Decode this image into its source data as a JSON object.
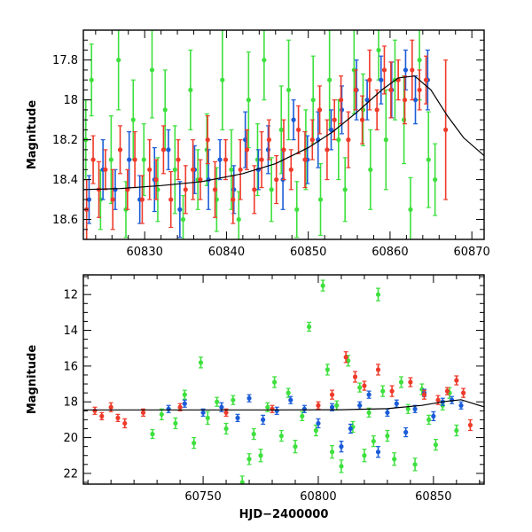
{
  "figure": {
    "x_axis_title": "HJD−2400000",
    "y_axis_title": "Magnitude"
  },
  "colors": {
    "green": "#3ee03e",
    "blue": "#1a5cd8",
    "red": "#ee3a2a",
    "curve": "#000000"
  },
  "chart_data": [
    {
      "type": "scatter",
      "panel": "top",
      "ylabel": "Magnitude",
      "xlabel": "",
      "xlim": [
        60822.5,
        60871.5
      ],
      "ylim": [
        18.7,
        17.65
      ],
      "y_inverted": true,
      "xticks": [
        60830,
        60840,
        60850,
        60860,
        60870
      ],
      "yticks": [
        17.8,
        18,
        18.2,
        18.4,
        18.6
      ],
      "ytick_labels": [
        "17.8",
        "18",
        "18.2",
        "18.4",
        "18.6"
      ],
      "model_curve": {
        "x": [
          60822.5,
          60827,
          60832,
          60837,
          60842,
          60846,
          60850,
          60853,
          60856,
          60859,
          60861,
          60863,
          60865,
          60867,
          60869,
          60871.5
        ],
        "y": [
          18.45,
          18.445,
          18.43,
          18.41,
          18.37,
          18.32,
          18.24,
          18.16,
          18.06,
          17.95,
          17.89,
          17.88,
          17.95,
          18.08,
          18.19,
          18.28
        ]
      },
      "series": [
        {
          "name": "",
          "color": "green",
          "x": [
            60822.8,
            60823.5,
            60824.6,
            60825.9,
            60826.8,
            60827.7,
            60828.6,
            60829.9,
            60830.9,
            60831.6,
            60832.5,
            60833.7,
            60834.7,
            60835.6,
            60836.5,
            60837.6,
            60838.8,
            60839.5,
            60840.6,
            60841.5,
            60842.7,
            60843.8,
            60844.6,
            60845.5,
            60846.7,
            60847.6,
            60848.6,
            60849.7,
            60850.6,
            60851.5,
            60852.6,
            60853.7,
            60854.5,
            60855.6,
            60856.7,
            60857.6,
            60858.6,
            60859.5,
            60860.6,
            60861.7,
            60862.5,
            60863.6,
            60864.7,
            60865.5
          ],
          "y": [
            18.2,
            17.9,
            18.5,
            18.3,
            17.8,
            18.55,
            18.1,
            18.3,
            17.85,
            18.45,
            18.05,
            18.35,
            18.6,
            17.95,
            18.4,
            18.25,
            18.5,
            17.9,
            18.35,
            18.6,
            18.0,
            18.3,
            17.8,
            18.45,
            18.15,
            17.95,
            18.55,
            18.25,
            18.0,
            18.5,
            17.9,
            18.2,
            18.45,
            17.85,
            18.05,
            18.35,
            17.75,
            18.2,
            17.9,
            18.1,
            18.55,
            17.8,
            18.3,
            18.4
          ],
          "err": [
            0.2,
            0.18,
            0.15,
            0.22,
            0.25,
            0.14,
            0.2,
            0.18,
            0.24,
            0.16,
            0.2,
            0.22,
            0.12,
            0.2,
            0.15,
            0.18,
            0.16,
            0.25,
            0.2,
            0.14,
            0.24,
            0.18,
            0.2,
            0.16,
            0.22,
            0.25,
            0.14,
            0.2,
            0.22,
            0.18,
            0.25,
            0.2,
            0.16,
            0.22,
            0.18,
            0.2,
            0.15,
            0.25,
            0.2,
            0.22,
            0.16,
            0.2,
            0.24,
            0.18
          ]
        },
        {
          "name": "",
          "color": "blue",
          "x": [
            60823.2,
            60824.9,
            60826.4,
            60828.1,
            60829.4,
            60831.2,
            60832.9,
            60834.3,
            60836.1,
            60837.8,
            60839.2,
            60840.9,
            60842.3,
            60843.9,
            60845.1,
            60846.9,
            60848.2,
            60849.9,
            60851.2,
            60852.8,
            60854.1,
            60855.9,
            60857.2,
            60858.9,
            60860.2,
            60861.9,
            60863.1,
            60864.6
          ],
          "y": [
            18.5,
            18.35,
            18.45,
            18.3,
            18.5,
            18.4,
            18.25,
            18.55,
            18.35,
            18.4,
            18.3,
            18.45,
            18.2,
            18.35,
            18.25,
            18.4,
            18.1,
            18.3,
            18.2,
            18.15,
            18.05,
            17.95,
            18.0,
            17.9,
            17.95,
            17.85,
            18.0,
            17.9
          ],
          "err": [
            0.12,
            0.15,
            0.1,
            0.14,
            0.12,
            0.16,
            0.1,
            0.14,
            0.12,
            0.15,
            0.1,
            0.12,
            0.14,
            0.1,
            0.12,
            0.15,
            0.1,
            0.12,
            0.14,
            0.1,
            0.12,
            0.15,
            0.1,
            0.12,
            0.14,
            0.1,
            0.12,
            0.15
          ]
        },
        {
          "name": "",
          "color": "red",
          "x": [
            60822.9,
            60823.7,
            60824.4,
            60825.2,
            60826.1,
            60827.0,
            60827.9,
            60828.8,
            60829.7,
            60830.6,
            60831.4,
            60832.3,
            60833.2,
            60834.1,
            60835.0,
            60835.9,
            60836.8,
            60837.7,
            60838.6,
            60839.9,
            60840.8,
            60841.7,
            60842.5,
            60843.4,
            60844.3,
            60845.2,
            60846.1,
            60847.0,
            60847.9,
            60848.8,
            60849.6,
            60850.5,
            60851.4,
            60852.3,
            60853.2,
            60854.0,
            60854.9,
            60855.8,
            60856.6,
            60857.5,
            60858.4,
            60859.3,
            60860.1,
            60861.0,
            60861.8,
            60862.7,
            60863.6,
            60864.4,
            60866.8
          ],
          "y": [
            18.55,
            18.3,
            18.45,
            18.35,
            18.5,
            18.25,
            18.45,
            18.3,
            18.5,
            18.35,
            18.4,
            18.25,
            18.5,
            18.3,
            18.45,
            18.35,
            18.4,
            18.2,
            18.45,
            18.3,
            18.5,
            18.35,
            18.25,
            18.45,
            18.3,
            18.2,
            18.4,
            18.25,
            18.35,
            18.15,
            18.3,
            18.2,
            18.05,
            18.25,
            18.1,
            18.0,
            18.2,
            17.95,
            18.1,
            17.9,
            18.05,
            17.85,
            17.95,
            17.9,
            18.0,
            17.85,
            17.95,
            17.9,
            18.15
          ],
          "err": [
            0.15,
            0.12,
            0.14,
            0.1,
            0.15,
            0.12,
            0.1,
            0.14,
            0.12,
            0.15,
            0.1,
            0.12,
            0.14,
            0.1,
            0.12,
            0.15,
            0.1,
            0.12,
            0.14,
            0.1,
            0.12,
            0.15,
            0.1,
            0.12,
            0.14,
            0.1,
            0.12,
            0.15,
            0.1,
            0.12,
            0.14,
            0.1,
            0.12,
            0.15,
            0.1,
            0.12,
            0.14,
            0.1,
            0.12,
            0.15,
            0.1,
            0.12,
            0.14,
            0.1,
            0.12,
            0.15,
            0.1,
            0.12,
            0.35
          ]
        }
      ]
    },
    {
      "type": "scatter",
      "panel": "bottom",
      "ylabel": "Magnitude",
      "xlabel": "HJD−2400000",
      "xlim": [
        60698,
        60872
      ],
      "ylim": [
        22.6,
        10.9
      ],
      "y_inverted": true,
      "xticks": [
        60750,
        60800,
        60850
      ],
      "yticks": [
        12,
        14,
        16,
        18,
        20,
        22
      ],
      "ytick_labels": [
        "12",
        "14",
        "16",
        "18",
        "20",
        "22"
      ],
      "model_curve": {
        "x": [
          60698,
          60720,
          60750,
          60780,
          60810,
          60830,
          60845,
          60855,
          60862,
          60872
        ],
        "y": [
          18.45,
          18.45,
          18.45,
          18.45,
          18.44,
          18.38,
          18.2,
          17.98,
          17.88,
          18.28
        ]
      },
      "series": [
        {
          "name": "",
          "color": "green",
          "x": [
            60728,
            60732,
            60738,
            60742,
            60746,
            60749,
            60752,
            60756,
            60760,
            60763,
            60767,
            60770,
            60772,
            60775,
            60778,
            60781,
            60784,
            60787,
            60790,
            60793,
            60796,
            60799,
            60802,
            60804,
            60806,
            60808,
            60810,
            60813,
            60815,
            60818,
            60820,
            60822,
            60824,
            60826,
            60828,
            60830,
            60833,
            60836,
            60839,
            60842,
            60845,
            60848,
            60851,
            60854,
            60857,
            60860
          ],
          "y": [
            19.8,
            18.7,
            19.2,
            17.6,
            20.3,
            15.8,
            18.9,
            18.0,
            19.5,
            17.9,
            22.5,
            21.2,
            19.8,
            21.0,
            18.3,
            16.9,
            19.9,
            17.5,
            20.5,
            18.8,
            13.8,
            19.6,
            11.5,
            16.2,
            20.8,
            18.2,
            21.6,
            15.7,
            19.4,
            17.2,
            21.0,
            18.6,
            20.2,
            12.0,
            17.4,
            19.9,
            21.2,
            16.9,
            18.4,
            21.5,
            17.3,
            19.0,
            20.4,
            18.2,
            17.5,
            19.6
          ],
          "err": [
            0.25,
            0.3,
            0.3,
            0.25,
            0.3,
            0.3,
            0.35,
            0.25,
            0.3,
            0.25,
            0.35,
            0.3,
            0.3,
            0.35,
            0.25,
            0.3,
            0.3,
            0.25,
            0.35,
            0.25,
            0.25,
            0.3,
            0.3,
            0.3,
            0.35,
            0.25,
            0.35,
            0.3,
            0.3,
            0.25,
            0.35,
            0.25,
            0.3,
            0.35,
            0.3,
            0.3,
            0.35,
            0.3,
            0.25,
            0.35,
            0.3,
            0.25,
            0.3,
            0.25,
            0.3,
            0.3
          ]
        },
        {
          "name": "",
          "color": "blue",
          "x": [
            60735,
            60742,
            60750,
            60758,
            60765,
            60770,
            60776,
            60782,
            60788,
            60794,
            60800,
            60806,
            60810,
            60814,
            60818,
            60822,
            60826,
            60830,
            60834,
            60838,
            60842,
            60846,
            60850,
            60854,
            60858,
            60862
          ],
          "y": [
            18.4,
            18.1,
            18.6,
            18.3,
            18.9,
            17.8,
            19.0,
            18.5,
            17.9,
            18.4,
            19.2,
            18.3,
            20.5,
            19.5,
            18.2,
            17.6,
            20.8,
            18.6,
            18.1,
            19.7,
            18.4,
            17.5,
            18.8,
            18.0,
            17.9,
            18.2
          ],
          "err": [
            0.2,
            0.2,
            0.2,
            0.25,
            0.2,
            0.2,
            0.25,
            0.2,
            0.2,
            0.2,
            0.25,
            0.2,
            0.3,
            0.25,
            0.2,
            0.2,
            0.3,
            0.2,
            0.2,
            0.25,
            0.2,
            0.2,
            0.25,
            0.2,
            0.2,
            0.2
          ]
        },
        {
          "name": "",
          "color": "red",
          "x": [
            60703,
            60706,
            60710,
            60713,
            60716,
            60724,
            60740,
            60760,
            60780,
            60800,
            60806,
            60812,
            60816,
            60820,
            60826,
            60832,
            60840,
            60846,
            60852,
            60856,
            60860,
            60863,
            60866
          ],
          "y": [
            18.5,
            18.8,
            18.3,
            18.9,
            19.2,
            18.6,
            18.3,
            18.6,
            18.4,
            18.2,
            17.6,
            15.5,
            16.6,
            17.1,
            16.2,
            17.4,
            16.9,
            17.6,
            17.9,
            17.4,
            16.8,
            17.5,
            19.3
          ],
          "err": [
            0.2,
            0.2,
            0.25,
            0.2,
            0.25,
            0.2,
            0.2,
            0.2,
            0.2,
            0.2,
            0.25,
            0.3,
            0.3,
            0.25,
            0.3,
            0.3,
            0.25,
            0.25,
            0.25,
            0.2,
            0.25,
            0.25,
            0.3
          ]
        }
      ]
    }
  ]
}
